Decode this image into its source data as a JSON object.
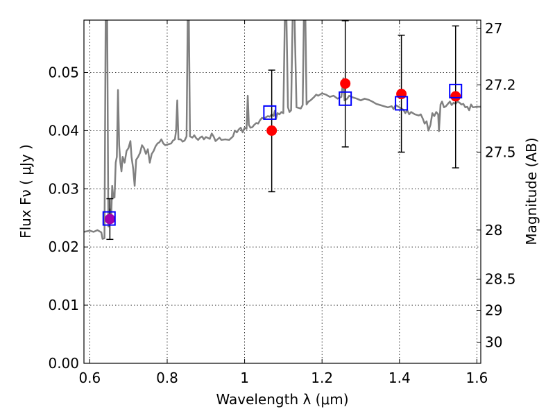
{
  "chart_data": {
    "type": "scatter",
    "title": "",
    "xlabel": "Wavelength  λ (μm)",
    "ylabel": "Flux  Fν  ( μJy )",
    "y2label": "Magnitude (AB)",
    "xlim": [
      0.585,
      1.61
    ],
    "ylim": [
      0.0,
      0.059
    ],
    "grid": true,
    "x_ticks": [
      0.6,
      0.8,
      1.0,
      1.2,
      1.4,
      1.6
    ],
    "x_tick_labels": [
      "0.6",
      "0.8",
      "1",
      "1.2",
      "1.4",
      "1.6"
    ],
    "y_ticks": [
      0.0,
      0.01,
      0.02,
      0.03,
      0.04,
      0.05
    ],
    "y_tick_labels": [
      "0.00",
      "0.01",
      "0.02",
      "0.03",
      "0.04",
      "0.05"
    ],
    "mag_ticks": [
      27,
      27.2,
      27.5,
      28,
      28.5,
      29,
      30
    ],
    "mag_tick_labels": [
      "27",
      "27.2",
      "27.5",
      "28",
      "28.5",
      "29",
      "30"
    ],
    "series": [
      {
        "kind": "line",
        "color": "#808080",
        "points": [
          [
            0.585,
            0.0226
          ],
          [
            0.6,
            0.0228
          ],
          [
            0.61,
            0.0226
          ],
          [
            0.62,
            0.0229
          ],
          [
            0.63,
            0.0225
          ],
          [
            0.633,
            0.0214
          ],
          [
            0.638,
            0.0215
          ],
          [
            0.641,
            0.059
          ],
          [
            0.645,
            0.059
          ],
          [
            0.648,
            0.0235
          ],
          [
            0.652,
            0.0265
          ],
          [
            0.655,
            0.0245
          ],
          [
            0.658,
            0.0305
          ],
          [
            0.661,
            0.0285
          ],
          [
            0.664,
            0.0285
          ],
          [
            0.667,
            0.0345
          ],
          [
            0.67,
            0.0355
          ],
          [
            0.673,
            0.047
          ],
          [
            0.676,
            0.0375
          ],
          [
            0.679,
            0.0345
          ],
          [
            0.682,
            0.033
          ],
          [
            0.685,
            0.0355
          ],
          [
            0.69,
            0.0345
          ],
          [
            0.695,
            0.0365
          ],
          [
            0.7,
            0.037
          ],
          [
            0.705,
            0.0382
          ],
          [
            0.708,
            0.0355
          ],
          [
            0.712,
            0.0335
          ],
          [
            0.716,
            0.0305
          ],
          [
            0.72,
            0.035
          ],
          [
            0.725,
            0.0355
          ],
          [
            0.73,
            0.0362
          ],
          [
            0.735,
            0.0375
          ],
          [
            0.74,
            0.037
          ],
          [
            0.745,
            0.036
          ],
          [
            0.75,
            0.0368
          ],
          [
            0.755,
            0.0345
          ],
          [
            0.76,
            0.036
          ],
          [
            0.765,
            0.0365
          ],
          [
            0.77,
            0.0373
          ],
          [
            0.775,
            0.0378
          ],
          [
            0.78,
            0.038
          ],
          [
            0.785,
            0.0385
          ],
          [
            0.79,
            0.0378
          ],
          [
            0.795,
            0.0375
          ],
          [
            0.8,
            0.0376
          ],
          [
            0.81,
            0.0378
          ],
          [
            0.815,
            0.0383
          ],
          [
            0.82,
            0.0385
          ],
          [
            0.823,
            0.04
          ],
          [
            0.826,
            0.0452
          ],
          [
            0.829,
            0.0385
          ],
          [
            0.835,
            0.0385
          ],
          [
            0.84,
            0.0381
          ],
          [
            0.845,
            0.0383
          ],
          [
            0.85,
            0.039
          ],
          [
            0.853,
            0.0594
          ],
          [
            0.856,
            0.0594
          ],
          [
            0.859,
            0.039
          ],
          [
            0.865,
            0.0388
          ],
          [
            0.87,
            0.0392
          ],
          [
            0.875,
            0.0387
          ],
          [
            0.88,
            0.0384
          ],
          [
            0.885,
            0.0388
          ],
          [
            0.89,
            0.039
          ],
          [
            0.895,
            0.0385
          ],
          [
            0.9,
            0.0389
          ],
          [
            0.91,
            0.0386
          ],
          [
            0.915,
            0.0395
          ],
          [
            0.92,
            0.039
          ],
          [
            0.925,
            0.0382
          ],
          [
            0.93,
            0.0385
          ],
          [
            0.935,
            0.0388
          ],
          [
            0.94,
            0.0384
          ],
          [
            0.95,
            0.0385
          ],
          [
            0.96,
            0.0384
          ],
          [
            0.97,
            0.039
          ],
          [
            0.975,
            0.04
          ],
          [
            0.98,
            0.0397
          ],
          [
            0.985,
            0.0402
          ],
          [
            0.99,
            0.0405
          ],
          [
            0.995,
            0.0397
          ],
          [
            1.0,
            0.0405
          ],
          [
            1.005,
            0.0403
          ],
          [
            1.008,
            0.046
          ],
          [
            1.011,
            0.041
          ],
          [
            1.015,
            0.0405
          ],
          [
            1.02,
            0.0406
          ],
          [
            1.025,
            0.041
          ],
          [
            1.03,
            0.0413
          ],
          [
            1.035,
            0.0412
          ],
          [
            1.04,
            0.0418
          ],
          [
            1.045,
            0.0422
          ],
          [
            1.05,
            0.042
          ],
          [
            1.055,
            0.0423
          ],
          [
            1.06,
            0.0425
          ],
          [
            1.065,
            0.0424
          ],
          [
            1.07,
            0.0428
          ],
          [
            1.075,
            0.0425
          ],
          [
            1.078,
            0.0434
          ],
          [
            1.081,
            0.042
          ],
          [
            1.085,
            0.043
          ],
          [
            1.09,
            0.0428
          ],
          [
            1.095,
            0.0432
          ],
          [
            1.1,
            0.043
          ],
          [
            1.104,
            0.0594
          ],
          [
            1.108,
            0.0594
          ],
          [
            1.112,
            0.044
          ],
          [
            1.116,
            0.0432
          ],
          [
            1.12,
            0.0435
          ],
          [
            1.124,
            0.0594
          ],
          [
            1.129,
            0.0594
          ],
          [
            1.134,
            0.044
          ],
          [
            1.14,
            0.0439
          ],
          [
            1.145,
            0.0438
          ],
          [
            1.15,
            0.0444
          ],
          [
            1.153,
            0.0594
          ],
          [
            1.157,
            0.0594
          ],
          [
            1.16,
            0.0445
          ],
          [
            1.165,
            0.045
          ],
          [
            1.17,
            0.0452
          ],
          [
            1.175,
            0.0455
          ],
          [
            1.18,
            0.0458
          ],
          [
            1.185,
            0.0462
          ],
          [
            1.19,
            0.046
          ],
          [
            1.2,
            0.0464
          ],
          [
            1.21,
            0.0462
          ],
          [
            1.22,
            0.0458
          ],
          [
            1.23,
            0.046
          ],
          [
            1.24,
            0.0455
          ],
          [
            1.25,
            0.0458
          ],
          [
            1.255,
            0.049
          ],
          [
            1.258,
            0.0452
          ],
          [
            1.265,
            0.0455
          ],
          [
            1.27,
            0.046
          ],
          [
            1.28,
            0.0457
          ],
          [
            1.29,
            0.0455
          ],
          [
            1.3,
            0.0452
          ],
          [
            1.31,
            0.0455
          ],
          [
            1.32,
            0.0453
          ],
          [
            1.33,
            0.045
          ],
          [
            1.34,
            0.0446
          ],
          [
            1.35,
            0.0444
          ],
          [
            1.36,
            0.0442
          ],
          [
            1.37,
            0.044
          ],
          [
            1.38,
            0.0442
          ],
          [
            1.385,
            0.0437
          ],
          [
            1.39,
            0.0444
          ],
          [
            1.4,
            0.044
          ],
          [
            1.41,
            0.0436
          ],
          [
            1.415,
            0.043
          ],
          [
            1.42,
            0.0435
          ],
          [
            1.425,
            0.0428
          ],
          [
            1.43,
            0.0432
          ],
          [
            1.44,
            0.0428
          ],
          [
            1.45,
            0.0426
          ],
          [
            1.455,
            0.0428
          ],
          [
            1.46,
            0.0421
          ],
          [
            1.465,
            0.0412
          ],
          [
            1.47,
            0.0416
          ],
          [
            1.475,
            0.04
          ],
          [
            1.48,
            0.041
          ],
          [
            1.485,
            0.043
          ],
          [
            1.49,
            0.0425
          ],
          [
            1.495,
            0.0432
          ],
          [
            1.5,
            0.0428
          ],
          [
            1.502,
            0.0399
          ],
          [
            1.506,
            0.0445
          ],
          [
            1.51,
            0.045
          ],
          [
            1.515,
            0.044
          ],
          [
            1.52,
            0.0442
          ],
          [
            1.525,
            0.0446
          ],
          [
            1.53,
            0.045
          ],
          [
            1.535,
            0.0444
          ],
          [
            1.54,
            0.0448
          ],
          [
            1.545,
            0.0446
          ],
          [
            1.55,
            0.045
          ],
          [
            1.555,
            0.0448
          ],
          [
            1.56,
            0.0445
          ],
          [
            1.565,
            0.0446
          ],
          [
            1.57,
            0.044
          ],
          [
            1.575,
            0.0441
          ],
          [
            1.58,
            0.0435
          ],
          [
            1.585,
            0.0445
          ],
          [
            1.59,
            0.044
          ],
          [
            1.6,
            0.0441
          ],
          [
            1.61,
            0.0441
          ]
        ]
      },
      {
        "kind": "points",
        "marker": "circle",
        "color": "#ff0000",
        "points": [
          {
            "x": 0.652,
            "y": 0.0248,
            "yerr_low": 0.0213,
            "yerr_high": 0.0283
          },
          {
            "x": 1.07,
            "y": 0.04,
            "yerr_low": 0.0295,
            "yerr_high": 0.0504
          },
          {
            "x": 1.26,
            "y": 0.0481,
            "yerr_low": 0.0372,
            "yerr_high": 0.0589
          },
          {
            "x": 1.405,
            "y": 0.0463,
            "yerr_low": 0.0363,
            "yerr_high": 0.0564
          },
          {
            "x": 1.545,
            "y": 0.0459,
            "yerr_low": 0.0336,
            "yerr_high": 0.058
          }
        ]
      },
      {
        "kind": "points",
        "marker": "open-square",
        "color": "#0000ff",
        "points": [
          {
            "x": 0.65,
            "y": 0.0249
          },
          {
            "x": 1.065,
            "y": 0.0431
          },
          {
            "x": 1.26,
            "y": 0.0455
          },
          {
            "x": 1.405,
            "y": 0.0447
          },
          {
            "x": 1.545,
            "y": 0.0468
          }
        ]
      }
    ],
    "overlap_color": "#a000b0"
  }
}
